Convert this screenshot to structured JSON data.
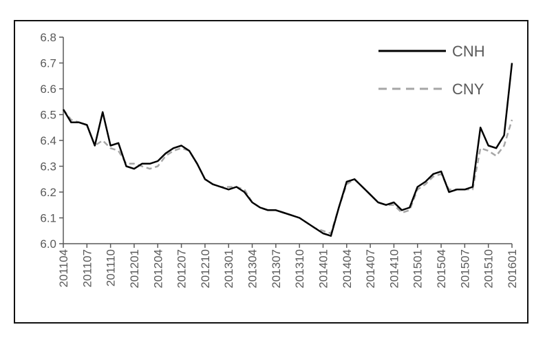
{
  "chart_data": {
    "type": "line",
    "title": "",
    "xlabel": "",
    "ylabel": "",
    "ylim": [
      6.0,
      6.8
    ],
    "yticks": [
      "6.0",
      "6.1",
      "6.2",
      "6.3",
      "6.4",
      "6.5",
      "6.6",
      "6.7",
      "6.8"
    ],
    "xticks": [
      "201104",
      "201107",
      "201110",
      "201201",
      "201204",
      "201207",
      "201210",
      "201301",
      "201304",
      "201307",
      "201310",
      "201401",
      "201404",
      "201407",
      "201410",
      "201501",
      "201504",
      "201507",
      "201510",
      "201601"
    ],
    "grid": false,
    "legend_position": "top-right",
    "x": [
      "201104",
      "201105",
      "201106",
      "201107",
      "201108",
      "201109",
      "201110",
      "201111",
      "201112",
      "201201",
      "201202",
      "201203",
      "201204",
      "201205",
      "201206",
      "201207",
      "201208",
      "201209",
      "201210",
      "201211",
      "201212",
      "201301",
      "201302",
      "201303",
      "201304",
      "201305",
      "201306",
      "201307",
      "201308",
      "201309",
      "201310",
      "201311",
      "201312",
      "201401",
      "201402",
      "201403",
      "201404",
      "201405",
      "201406",
      "201407",
      "201408",
      "201409",
      "201410",
      "201411",
      "201412",
      "201501",
      "201502",
      "201503",
      "201504",
      "201505",
      "201506",
      "201507",
      "201508",
      "201509",
      "201510",
      "201511",
      "201512",
      "201601"
    ],
    "series": [
      {
        "name": "CNH",
        "color": "#000000",
        "dash": "solid",
        "values": [
          6.52,
          6.47,
          6.47,
          6.46,
          6.38,
          6.51,
          6.38,
          6.39,
          6.3,
          6.29,
          6.31,
          6.31,
          6.32,
          6.35,
          6.37,
          6.38,
          6.36,
          6.31,
          6.25,
          6.23,
          6.22,
          6.21,
          6.22,
          6.2,
          6.16,
          6.14,
          6.13,
          6.13,
          6.12,
          6.11,
          6.1,
          6.08,
          6.06,
          6.04,
          6.03,
          6.14,
          6.24,
          6.25,
          6.22,
          6.19,
          6.16,
          6.15,
          6.16,
          6.13,
          6.14,
          6.22,
          6.24,
          6.27,
          6.28,
          6.2,
          6.21,
          6.21,
          6.22,
          6.45,
          6.38,
          6.37,
          6.42,
          6.7
        ]
      },
      {
        "name": "CNY",
        "color": "#a6a6a6",
        "dash": "dashed",
        "values": [
          6.52,
          6.48,
          6.47,
          6.46,
          6.38,
          6.4,
          6.37,
          6.36,
          6.31,
          6.31,
          6.3,
          6.29,
          6.3,
          6.34,
          6.36,
          6.37,
          6.36,
          6.31,
          6.25,
          6.23,
          6.22,
          6.22,
          6.22,
          6.21,
          6.16,
          6.14,
          6.13,
          6.13,
          6.12,
          6.11,
          6.1,
          6.08,
          6.06,
          6.05,
          6.04,
          6.14,
          6.23,
          6.25,
          6.22,
          6.19,
          6.16,
          6.15,
          6.15,
          6.12,
          6.13,
          6.21,
          6.23,
          6.26,
          6.27,
          6.21,
          6.21,
          6.21,
          6.21,
          6.37,
          6.36,
          6.34,
          6.38,
          6.48
        ]
      }
    ]
  }
}
